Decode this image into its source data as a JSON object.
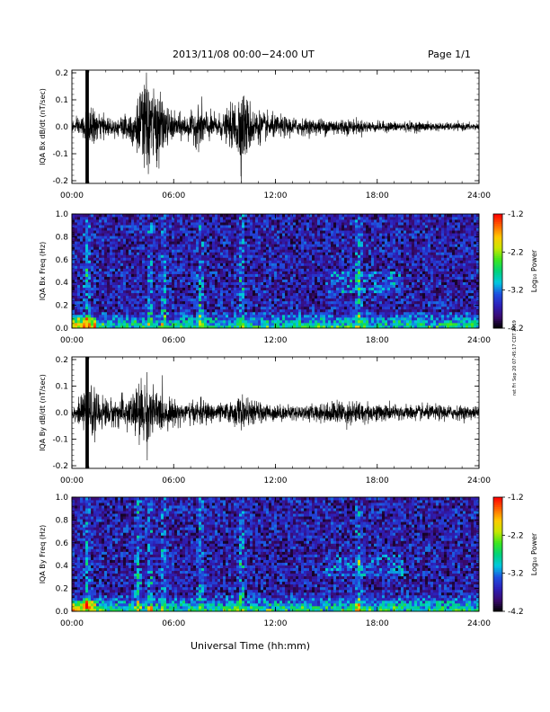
{
  "header": {
    "title": "2013/11/08  00:00−24:00 UT",
    "page": "Page 1/1"
  },
  "x_axis_title": "Universal Time (hh:mm)",
  "side_note": "ret Fri Sep 20 07:45:17 CDT 2019",
  "colorbar": {
    "label": "Log₁₀ Power",
    "ticks": [
      "-1.2",
      "-2.2",
      "-3.2",
      "-4.2"
    ],
    "range": [
      -4.2,
      -1.2
    ],
    "colormap": [
      "#000000",
      "#3a0a6e",
      "#2d1fb8",
      "#1f4fe0",
      "#00c8e0",
      "#00d27a",
      "#3ce61e",
      "#c8e600",
      "#ffc800",
      "#ff6400",
      "#ff0000"
    ]
  },
  "chart_data": [
    {
      "type": "line",
      "ylabel": "IQA Bx dB/dt (nT/sec)",
      "x_ticks": [
        "00:00",
        "06:00",
        "12:00",
        "18:00",
        "24:00"
      ],
      "y_ticks": [
        "0.2",
        "0.1",
        "0.0",
        "-0.1",
        "-0.2"
      ],
      "xlim": [
        0,
        24
      ],
      "ylim": [
        -0.21,
        0.21
      ],
      "envelope": {
        "x": [
          0,
          0.5,
          0.8,
          1.2,
          1.6,
          2.5,
          3.3,
          3.8,
          4.2,
          4.5,
          4.8,
          5.2,
          5.6,
          6.0,
          7.0,
          7.6,
          8.2,
          9.0,
          9.6,
          9.9,
          10.3,
          10.8,
          11.5,
          12.5,
          14.0,
          15.5,
          16.5,
          18.0,
          20.0,
          22.0,
          24.0
        ],
        "amp": [
          0.02,
          0.04,
          0.06,
          0.07,
          0.05,
          0.03,
          0.06,
          0.1,
          0.17,
          0.2,
          0.16,
          0.12,
          0.08,
          0.05,
          0.05,
          0.09,
          0.05,
          0.05,
          0.1,
          0.16,
          0.12,
          0.07,
          0.05,
          0.04,
          0.03,
          0.035,
          0.03,
          0.02,
          0.02,
          0.015,
          0.015
        ]
      },
      "gap": [
        0.8,
        1.0
      ]
    },
    {
      "type": "heatmap",
      "ylabel": "IQA Bx Freq (Hz)",
      "x_ticks": [
        "00:00",
        "06:00",
        "12:00",
        "18:00",
        "24:00"
      ],
      "y_ticks": [
        "1.0",
        "0.8",
        "0.6",
        "0.4",
        "0.2",
        "0.0"
      ],
      "xlim": [
        0,
        24
      ],
      "ylim": [
        0,
        1
      ],
      "value_range": [
        -4.2,
        -1.2
      ],
      "bursts": [
        0.9,
        4.6,
        5.4,
        7.6,
        10.0,
        16.9
      ],
      "bands": [
        [
          15.0,
          19.5,
          0.3,
          0.5
        ]
      ]
    },
    {
      "type": "line",
      "ylabel": "IQA By dB/dt (nT/sec)",
      "x_ticks": [
        "00:00",
        "06:00",
        "12:00",
        "18:00",
        "24:00"
      ],
      "y_ticks": [
        "0.2",
        "0.1",
        "0.0",
        "-0.1",
        "-0.2"
      ],
      "xlim": [
        0,
        24
      ],
      "ylim": [
        -0.21,
        0.21
      ],
      "envelope": {
        "x": [
          0,
          0.5,
          0.8,
          1.2,
          1.6,
          2.5,
          3.3,
          3.8,
          4.2,
          4.5,
          4.8,
          5.2,
          5.6,
          6.0,
          7.0,
          7.6,
          8.2,
          9.0,
          9.6,
          9.9,
          10.3,
          10.8,
          11.5,
          12.5,
          14.0,
          15.5,
          16.5,
          18.0,
          20.0,
          22.0,
          24.0
        ],
        "amp": [
          0.025,
          0.05,
          0.08,
          0.1,
          0.07,
          0.05,
          0.07,
          0.1,
          0.14,
          0.13,
          0.1,
          0.08,
          0.06,
          0.05,
          0.04,
          0.05,
          0.04,
          0.035,
          0.05,
          0.07,
          0.05,
          0.045,
          0.035,
          0.03,
          0.03,
          0.045,
          0.05,
          0.035,
          0.03,
          0.03,
          0.025
        ]
      },
      "gap": [
        0.8,
        1.0
      ]
    },
    {
      "type": "heatmap",
      "ylabel": "IQA By Freq (Hz)",
      "x_ticks": [
        "00:00",
        "06:00",
        "12:00",
        "18:00",
        "24:00"
      ],
      "y_ticks": [
        "1.0",
        "0.8",
        "0.6",
        "0.4",
        "0.2",
        "0.0"
      ],
      "xlim": [
        0,
        24
      ],
      "ylim": [
        0,
        1
      ],
      "value_range": [
        -4.2,
        -1.2
      ],
      "bursts": [
        0.9,
        3.9,
        4.6,
        5.4,
        7.6,
        10.0,
        16.9
      ],
      "bands": [
        [
          15.0,
          19.5,
          0.3,
          0.5
        ]
      ]
    }
  ]
}
